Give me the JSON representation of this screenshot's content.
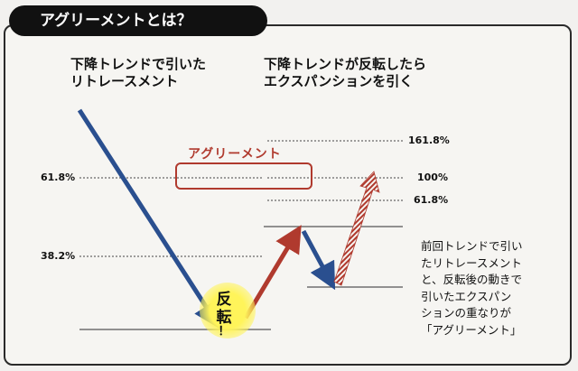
{
  "title": "アグリーメントとは？",
  "left_caption": [
    "下降トレンドで引いた",
    "リトレースメント"
  ],
  "right_caption": [
    "下降トレンドが反転したら",
    "エクスパンションを引く"
  ],
  "agreement_label": "アグリーメント",
  "reversal_label": [
    "反",
    "転",
    "！"
  ],
  "retracement_levels": [
    {
      "label": "61.8%"
    },
    {
      "label": "38.2%"
    }
  ],
  "expansion_levels": [
    {
      "label": "161.8%"
    },
    {
      "label": "100%"
    },
    {
      "label": "61.8%"
    }
  ],
  "note_lines": [
    "前回トレンドで引い",
    "たリトレースメント",
    "と、反転後の動きで",
    "引いたエクスパン",
    "ションの重なりが",
    "「アグリーメント」"
  ],
  "colors": {
    "down_trend": "#2a4f8f",
    "up_trend": "#b03a2e",
    "projection": "#b03a2e",
    "highlight": "#fff45a"
  }
}
